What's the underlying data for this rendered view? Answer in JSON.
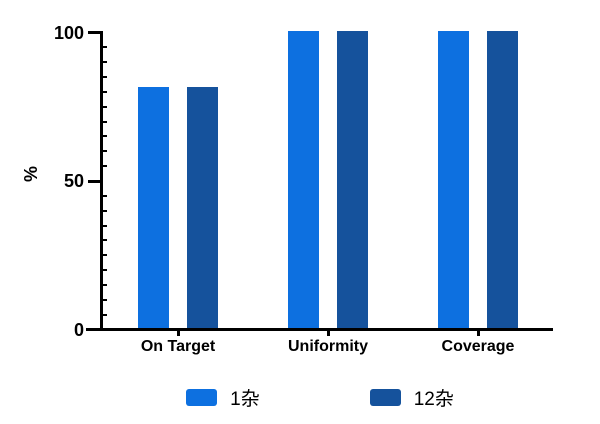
{
  "chart_data": {
    "type": "bar",
    "title": "",
    "xlabel": "",
    "ylabel": "%",
    "categories": [
      "On Target",
      "Uniformity",
      "Coverage"
    ],
    "series": [
      {
        "name": "1杂",
        "color": "#0d70e0",
        "values": [
          81,
          100,
          100
        ]
      },
      {
        "name": "12杂",
        "color": "#15529c",
        "values": [
          81,
          100,
          100
        ]
      }
    ],
    "ylim": [
      0,
      100
    ],
    "yticks": [
      0,
      50,
      100
    ],
    "minor_tick_step": 5,
    "grid": false,
    "legend_position": "bottom",
    "axis_color": "#000000",
    "background_color": "#ffffff"
  }
}
